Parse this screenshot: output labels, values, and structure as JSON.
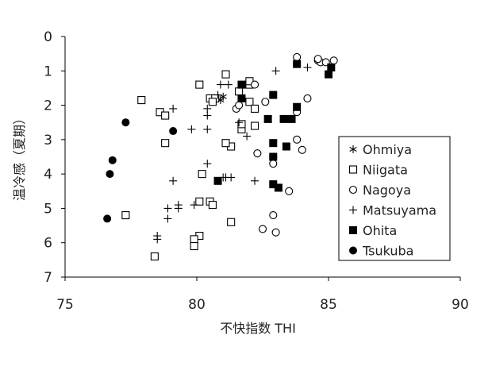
{
  "chart_data": {
    "type": "scatter",
    "xlabel": "不快指数 THI",
    "ylabel": "温冷感（夏期）",
    "xlim": [
      75,
      90
    ],
    "ylim": [
      0,
      7
    ],
    "y_inverted": true,
    "x_ticks": [
      "75",
      "80",
      "85",
      "90"
    ],
    "y_ticks": [
      "0",
      "1",
      "2",
      "3",
      "4",
      "5",
      "6",
      "7"
    ],
    "legend_position": "inside-right",
    "series": [
      {
        "name": "Ohmiya",
        "marker": "asterisk",
        "points": [
          [
            81.0,
            1.75
          ],
          [
            80.9,
            1.85
          ]
        ]
      },
      {
        "name": "Niigata",
        "marker": "open-square",
        "points": [
          [
            77.9,
            1.85
          ],
          [
            78.6,
            2.2
          ],
          [
            78.8,
            2.3
          ],
          [
            78.8,
            3.1
          ],
          [
            77.3,
            5.2
          ],
          [
            80.1,
            1.4
          ],
          [
            80.5,
            1.8
          ],
          [
            80.7,
            1.8
          ],
          [
            80.6,
            1.9
          ],
          [
            80.2,
            4.0
          ],
          [
            81.1,
            1.1
          ],
          [
            81.3,
            3.2
          ],
          [
            81.1,
            3.1
          ],
          [
            80.5,
            4.8
          ],
          [
            80.1,
            4.8
          ],
          [
            80.6,
            4.9
          ],
          [
            80.1,
            5.8
          ],
          [
            79.9,
            5.9
          ],
          [
            79.9,
            6.1
          ],
          [
            78.4,
            6.4
          ],
          [
            81.3,
            5.4
          ],
          [
            81.6,
            1.6
          ],
          [
            81.7,
            2.7
          ],
          [
            81.7,
            2.55
          ],
          [
            82.0,
            1.9
          ],
          [
            82.0,
            1.4
          ],
          [
            82.2,
            2.1
          ],
          [
            82.2,
            2.6
          ],
          [
            82.0,
            1.3
          ]
        ]
      },
      {
        "name": "Nagoya",
        "marker": "open-circle",
        "points": [
          [
            81.5,
            2.1
          ],
          [
            81.6,
            2.0
          ],
          [
            82.2,
            1.4
          ],
          [
            82.6,
            1.9
          ],
          [
            82.9,
            3.5
          ],
          [
            82.9,
            3.7
          ],
          [
            82.3,
            3.4
          ],
          [
            82.5,
            5.6
          ],
          [
            83.0,
            5.7
          ],
          [
            82.9,
            5.2
          ],
          [
            83.5,
            4.5
          ],
          [
            83.8,
            3.0
          ],
          [
            84.0,
            3.3
          ],
          [
            83.8,
            2.2
          ],
          [
            83.8,
            0.6
          ],
          [
            84.2,
            1.8
          ],
          [
            84.6,
            0.7
          ],
          [
            84.7,
            0.75
          ],
          [
            84.9,
            0.75
          ],
          [
            85.2,
            0.7
          ],
          [
            84.6,
            0.65
          ]
        ]
      },
      {
        "name": "Matsuyama",
        "marker": "plus",
        "points": [
          [
            78.5,
            5.8
          ],
          [
            78.5,
            5.9
          ],
          [
            78.9,
            5.3
          ],
          [
            78.9,
            5.0
          ],
          [
            79.3,
            4.9
          ],
          [
            79.3,
            5.0
          ],
          [
            79.1,
            4.2
          ],
          [
            79.1,
            2.1
          ],
          [
            79.8,
            2.7
          ],
          [
            79.9,
            4.9
          ],
          [
            80.4,
            2.3
          ],
          [
            80.4,
            2.7
          ],
          [
            80.4,
            2.1
          ],
          [
            80.4,
            3.7
          ],
          [
            80.8,
            1.7
          ],
          [
            80.9,
            1.4
          ],
          [
            81.2,
            1.4
          ],
          [
            81.1,
            4.1
          ],
          [
            81.3,
            4.1
          ],
          [
            81.0,
            4.1
          ],
          [
            81.6,
            2.5
          ],
          [
            81.9,
            2.9
          ],
          [
            81.7,
            1.8
          ],
          [
            82.2,
            4.2
          ],
          [
            83.0,
            1.0
          ],
          [
            84.2,
            0.9
          ]
        ]
      },
      {
        "name": "Ohita",
        "marker": "filled-square",
        "points": [
          [
            80.8,
            4.2
          ],
          [
            81.7,
            1.4
          ],
          [
            81.7,
            1.8
          ],
          [
            82.7,
            2.4
          ],
          [
            82.9,
            1.7
          ],
          [
            82.9,
            3.1
          ],
          [
            83.3,
            2.4
          ],
          [
            82.9,
            3.5
          ],
          [
            83.4,
            3.2
          ],
          [
            82.9,
            4.3
          ],
          [
            83.1,
            4.4
          ],
          [
            83.6,
            2.4
          ],
          [
            83.8,
            2.05
          ],
          [
            83.8,
            0.8
          ],
          [
            85.0,
            1.1
          ],
          [
            85.1,
            0.9
          ]
        ]
      },
      {
        "name": "Tsukuba",
        "marker": "filled-circle",
        "points": [
          [
            77.3,
            2.5
          ],
          [
            76.8,
            3.6
          ],
          [
            76.7,
            4.0
          ],
          [
            76.6,
            5.3
          ],
          [
            79.1,
            2.75
          ]
        ]
      }
    ]
  }
}
